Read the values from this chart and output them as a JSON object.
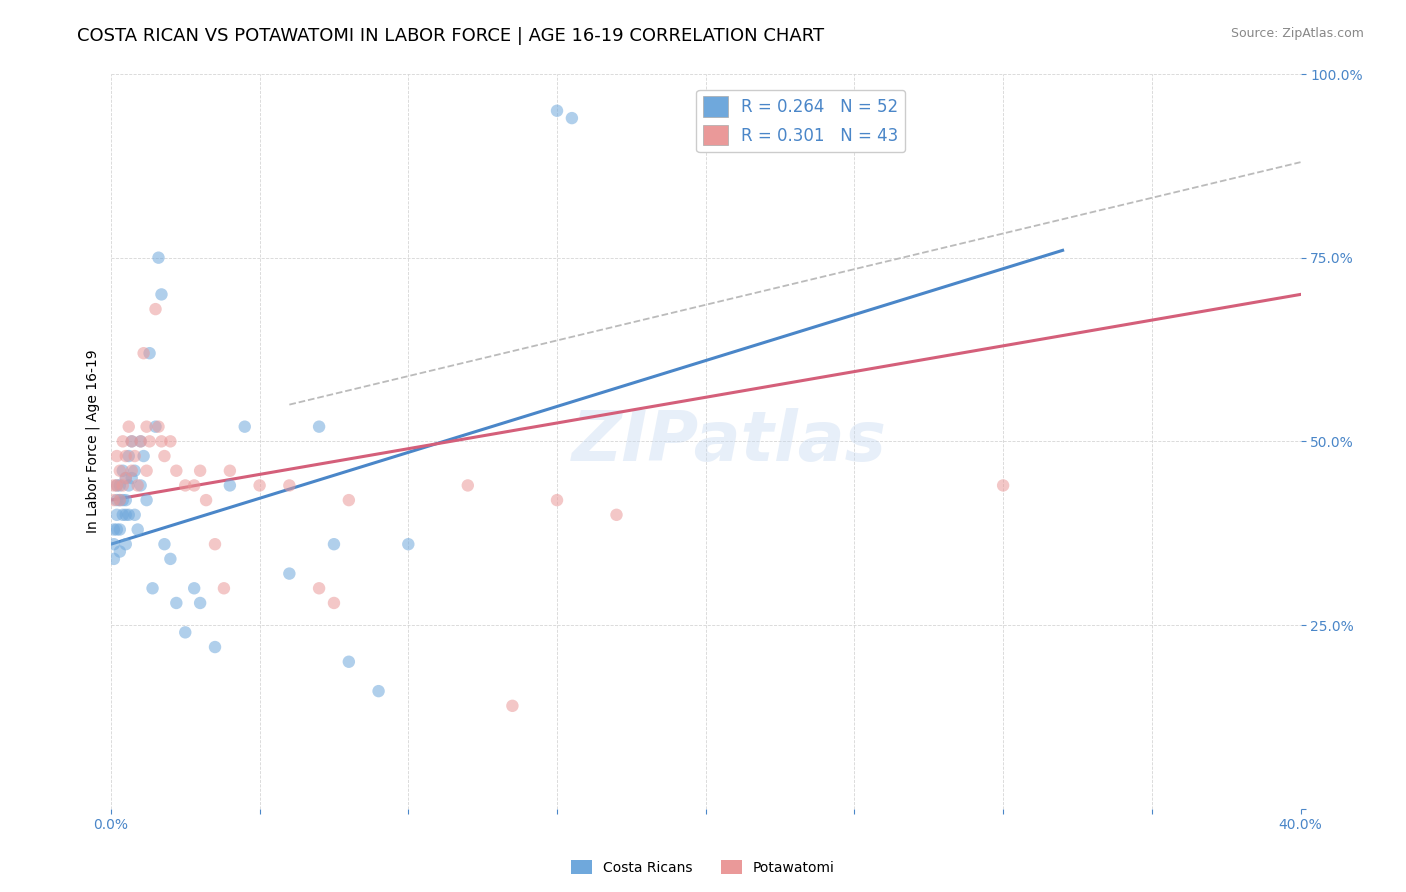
{
  "title": "COSTA RICAN VS POTAWATOMI IN LABOR FORCE | AGE 16-19 CORRELATION CHART",
  "source": "Source: ZipAtlas.com",
  "ylabel": "In Labor Force | Age 16-19",
  "xlim": [
    0.0,
    0.4
  ],
  "ylim": [
    0.0,
    1.0
  ],
  "blue_color": "#6fa8dc",
  "pink_color": "#ea9999",
  "blue_line_color": "#4a86c8",
  "pink_line_color": "#d45f7a",
  "dashed_line_color": "#bbbbbb",
  "legend_blue_label": "R = 0.264   N = 52",
  "legend_pink_label": "R = 0.301   N = 43",
  "bottom_legend_blue": "Costa Ricans",
  "bottom_legend_pink": "Potawatomi",
  "watermark": "ZIPatlas",
  "blue_scatter_x": [
    0.001,
    0.001,
    0.001,
    0.002,
    0.002,
    0.002,
    0.002,
    0.003,
    0.003,
    0.003,
    0.003,
    0.004,
    0.004,
    0.004,
    0.005,
    0.005,
    0.005,
    0.005,
    0.006,
    0.006,
    0.006,
    0.007,
    0.007,
    0.008,
    0.008,
    0.009,
    0.01,
    0.01,
    0.011,
    0.012,
    0.013,
    0.014,
    0.015,
    0.016,
    0.017,
    0.018,
    0.02,
    0.022,
    0.025,
    0.028,
    0.03,
    0.035,
    0.04,
    0.045,
    0.06,
    0.07,
    0.075,
    0.08,
    0.09,
    0.1,
    0.15,
    0.155
  ],
  "blue_scatter_y": [
    0.38,
    0.36,
    0.34,
    0.44,
    0.42,
    0.4,
    0.38,
    0.44,
    0.42,
    0.38,
    0.35,
    0.46,
    0.42,
    0.4,
    0.45,
    0.42,
    0.4,
    0.36,
    0.48,
    0.44,
    0.4,
    0.5,
    0.45,
    0.46,
    0.4,
    0.38,
    0.5,
    0.44,
    0.48,
    0.42,
    0.62,
    0.3,
    0.52,
    0.75,
    0.7,
    0.36,
    0.34,
    0.28,
    0.24,
    0.3,
    0.28,
    0.22,
    0.44,
    0.52,
    0.32,
    0.52,
    0.36,
    0.2,
    0.16,
    0.36,
    0.95,
    0.94
  ],
  "pink_scatter_x": [
    0.001,
    0.001,
    0.002,
    0.002,
    0.003,
    0.003,
    0.004,
    0.004,
    0.005,
    0.005,
    0.006,
    0.007,
    0.007,
    0.008,
    0.009,
    0.01,
    0.011,
    0.012,
    0.012,
    0.013,
    0.015,
    0.016,
    0.017,
    0.018,
    0.02,
    0.022,
    0.025,
    0.028,
    0.03,
    0.032,
    0.035,
    0.038,
    0.04,
    0.05,
    0.06,
    0.07,
    0.075,
    0.08,
    0.12,
    0.135,
    0.15,
    0.17,
    0.3
  ],
  "pink_scatter_y": [
    0.44,
    0.42,
    0.48,
    0.44,
    0.46,
    0.42,
    0.5,
    0.44,
    0.48,
    0.45,
    0.52,
    0.5,
    0.46,
    0.48,
    0.44,
    0.5,
    0.62,
    0.52,
    0.46,
    0.5,
    0.68,
    0.52,
    0.5,
    0.48,
    0.5,
    0.46,
    0.44,
    0.44,
    0.46,
    0.42,
    0.36,
    0.3,
    0.46,
    0.44,
    0.44,
    0.3,
    0.28,
    0.42,
    0.44,
    0.14,
    0.42,
    0.4,
    0.44
  ],
  "blue_line_x": [
    0.0,
    0.32
  ],
  "blue_line_y": [
    0.36,
    0.76
  ],
  "pink_line_x": [
    0.0,
    0.4
  ],
  "pink_line_y": [
    0.42,
    0.7
  ],
  "dashed_line_x": [
    0.06,
    0.4
  ],
  "dashed_line_y": [
    0.55,
    0.88
  ],
  "title_fontsize": 13,
  "axis_label_fontsize": 10,
  "tick_fontsize": 10,
  "source_fontsize": 9
}
